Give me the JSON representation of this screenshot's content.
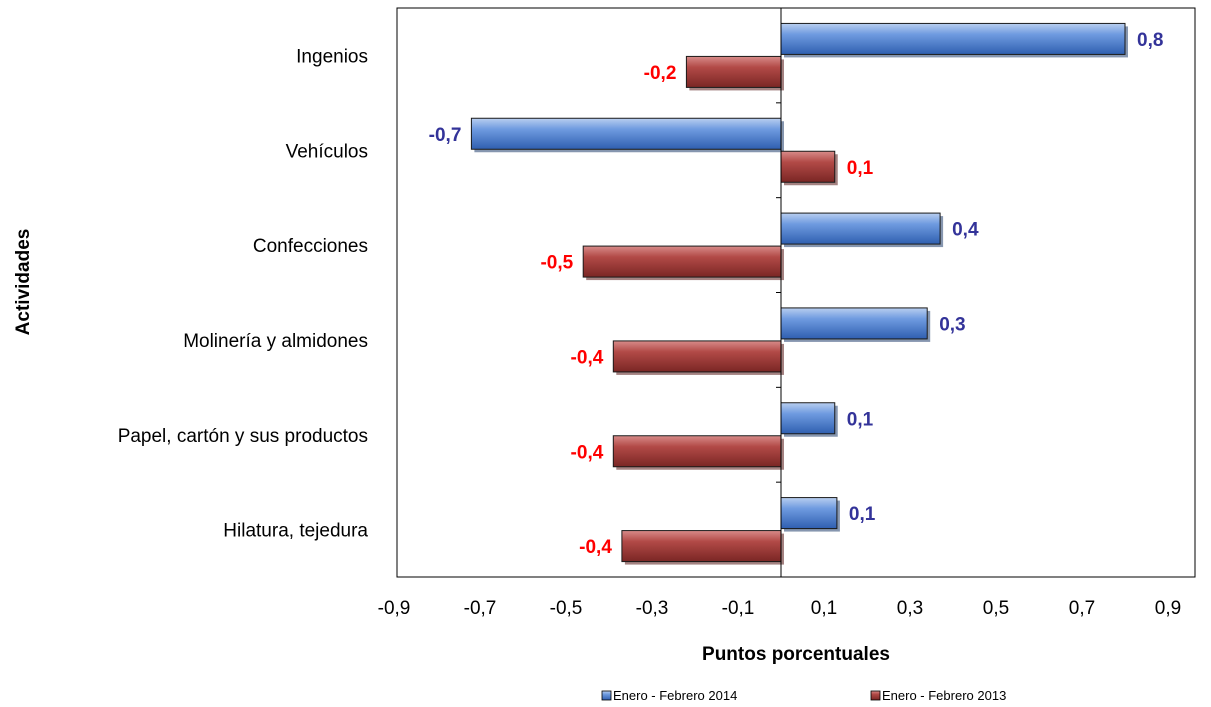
{
  "chart_data": {
    "type": "bar",
    "orientation": "horizontal",
    "categories": [
      "Ingenios",
      "Vehículos",
      "Confecciones",
      "Molinería y almidones",
      "Papel, cartón y sus productos",
      "Hilatura, tejedura"
    ],
    "series": [
      {
        "name": "Enero - Febrero 2014",
        "values": [
          0.8,
          -0.72,
          0.37,
          0.34,
          0.125,
          0.13
        ],
        "labels": [
          "0,8",
          "-0,7",
          "0,4",
          "0,3",
          "0,1",
          "0,1"
        ],
        "color": "#4f81bd",
        "label_color": "#333399"
      },
      {
        "name": "Enero - Febrero 2013",
        "values": [
          -0.22,
          0.125,
          -0.46,
          -0.39,
          -0.39,
          -0.37
        ],
        "labels": [
          "-0,2",
          "0,1",
          "-0,5",
          "-0,4",
          "-0,4",
          "-0,4"
        ],
        "color": "#a5413f",
        "label_color": "#ff0000"
      }
    ],
    "xlabel": "Puntos porcentuales",
    "ylabel": "Actividades",
    "xlim": [
      -0.9,
      1.0
    ],
    "x_ticks": [
      -0.9,
      -0.7,
      -0.5,
      -0.3,
      -0.1,
      0.1,
      0.3,
      0.5,
      0.7,
      0.9
    ],
    "x_tick_labels": [
      "-0,9",
      "-0,7",
      "-0,5",
      "-0,3",
      "-0,1",
      "0,1",
      "0,3",
      "0,5",
      "0,7",
      "0,9"
    ],
    "grid": false,
    "legend_position": "bottom"
  }
}
